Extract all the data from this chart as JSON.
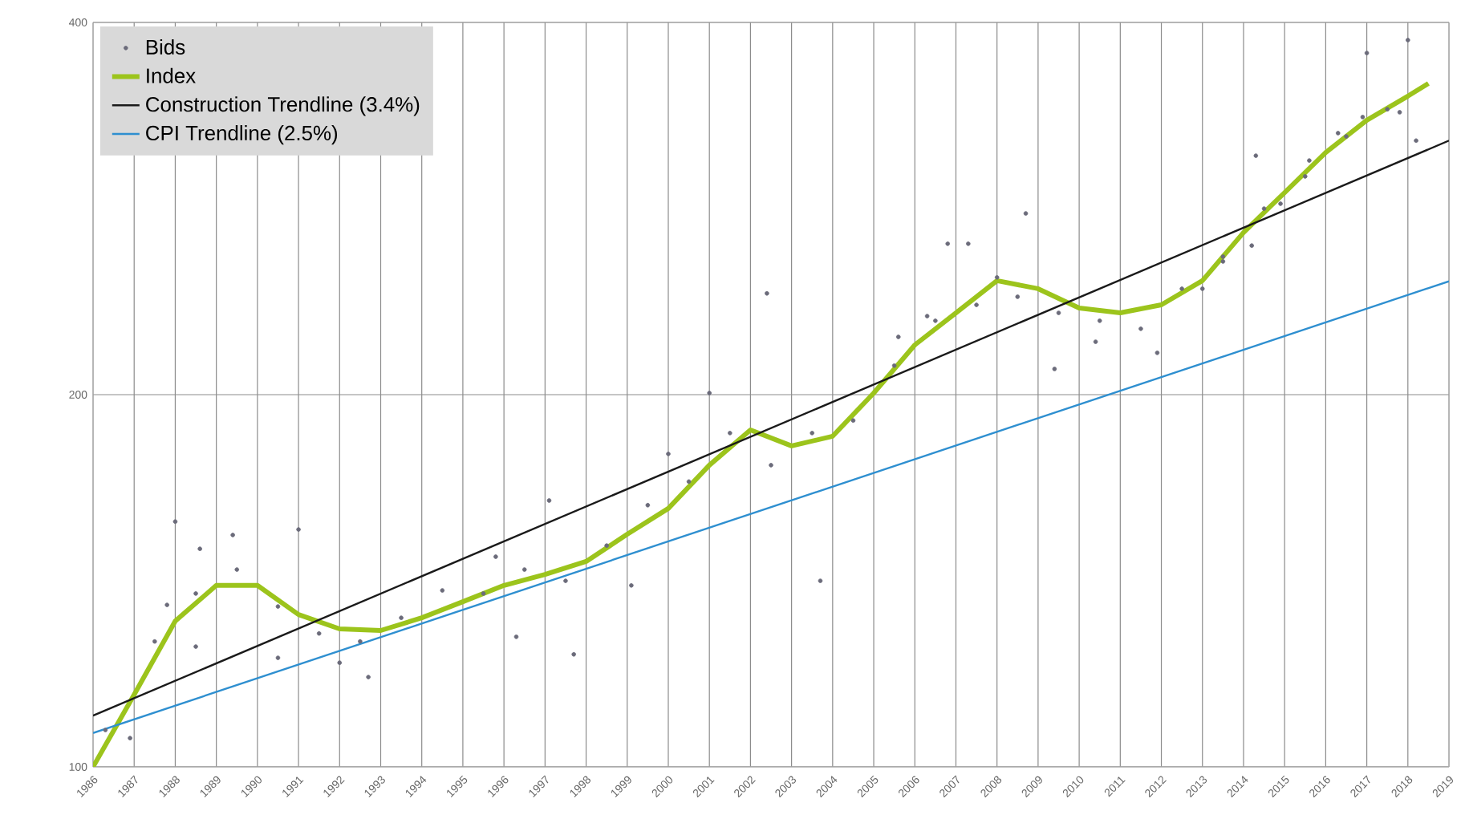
{
  "chart_data": {
    "type": "line",
    "xlim": [
      1986,
      2019
    ],
    "ylim": [
      100,
      400
    ],
    "xticks": [
      1986,
      1987,
      1988,
      1989,
      1990,
      1991,
      1992,
      1993,
      1994,
      1995,
      1996,
      1997,
      1998,
      1999,
      2000,
      2001,
      2002,
      2003,
      2004,
      2005,
      2006,
      2007,
      2008,
      2009,
      2010,
      2011,
      2012,
      2013,
      2014,
      2015,
      2016,
      2017,
      2018,
      2019
    ],
    "yticks": [
      100,
      200,
      400
    ],
    "log": "y",
    "grid": true,
    "legend": "top left",
    "series": [
      {
        "name": "Bids",
        "type": "scatter",
        "marker": "circle",
        "color": "#6b6b7a",
        "x": [
          1986.9,
          1988.0,
          1989.4,
          1988.6,
          1987.8,
          1988.5,
          1991.0,
          1990.5,
          1992.7,
          1992.0,
          1996.3,
          1997.1,
          1997.7,
          1995.8,
          2000.0,
          1999.1,
          2001.0,
          2002.4,
          2003.7,
          2008.7,
          2007.3,
          2006.8,
          2009.4,
          2011.9,
          2014.3,
          2017.0,
          2018.0,
          2018.2,
          2017.8,
          2013.5,
          2014.2,
          2015.6,
          2016.3,
          2010.4,
          2005.6,
          2006.3,
          2008.0,
          2013.0,
          2016.9,
          2014.9,
          1986.3,
          1987.5,
          1988.5,
          1989.5,
          1990.5,
          1991.5,
          1992.5,
          1993.5,
          1994.5,
          1995.5,
          1996.5,
          1997.5,
          1998.5,
          1999.5,
          2000.5,
          2001.5,
          2002.5,
          2003.5,
          2004.5,
          2005.5,
          2006.5,
          2007.5,
          2008.5,
          2009.5,
          2010.5,
          2011.5,
          2012.5,
          2013.5,
          2014.5,
          2015.5,
          2016.5,
          2017.5
        ],
        "values": [
          105.5,
          157.9,
          154,
          150.1,
          135.2,
          125.1,
          155.6,
          122.5,
          118.2,
          121.4,
          127.4,
          164.2,
          123.3,
          147.9,
          179.1,
          140.2,
          200.6,
          241.5,
          141.4,
          280.3,
          264.9,
          264.9,
          209.8,
          216.2,
          312.1,
          377.9,
          387.1,
          321,
          338.4,
          256.3,
          264,
          309.3,
          325.5,
          220.7,
          222.7,
          231.5,
          248.8,
          243.6,
          335.4,
          285.4,
          107.1,
          126.3,
          138.1,
          144.4,
          134.8,
          128.2,
          126.3,
          132,
          138.9,
          138.1,
          144.4,
          141.4,
          151,
          162.8,
          170.1,
          186.2,
          175.4,
          186.2,
          190.6,
          211.1,
          229.5,
          236.4,
          240,
          232.9,
          229.5,
          226.1,
          243.6,
          258.6,
          282.8,
          300.3,
          323.5,
          340.3
        ]
      },
      {
        "name": "Index",
        "color": "#9cc41c",
        "x": [
          1986,
          1987,
          1988,
          1989,
          1990,
          1991,
          1992,
          1993,
          1994,
          1995,
          1996,
          1997,
          1998,
          1999,
          2000,
          2001,
          2002,
          2003,
          2004,
          2005,
          2006,
          2007,
          2008,
          2009,
          2010,
          2011,
          2012,
          2013,
          2014,
          2015,
          2016,
          2017,
          2018,
          2018.5
        ],
        "values": [
          100,
          114.4,
          131.2,
          140.2,
          140.2,
          132.8,
          129.3,
          128.9,
          132,
          136,
          140.2,
          143.1,
          146.6,
          154.2,
          161.8,
          175.4,
          187.3,
          181.8,
          185.1,
          200.6,
          219.4,
          232.9,
          247.3,
          243.6,
          235,
          232.9,
          236.4,
          247.3,
          270.5,
          291.4,
          314,
          333.4,
          348.7,
          357.1
        ]
      },
      {
        "name": "Construction Trendline (3.4%)",
        "color": "#1a1a1a",
        "x": [
          1986,
          2019
        ],
        "values": [
          110,
          321
        ]
      },
      {
        "name": "CPI Trendline (2.5%)",
        "color": "#2e8fd0",
        "x": [
          1986,
          2019
        ],
        "values": [
          106.5,
          247
        ]
      }
    ]
  }
}
